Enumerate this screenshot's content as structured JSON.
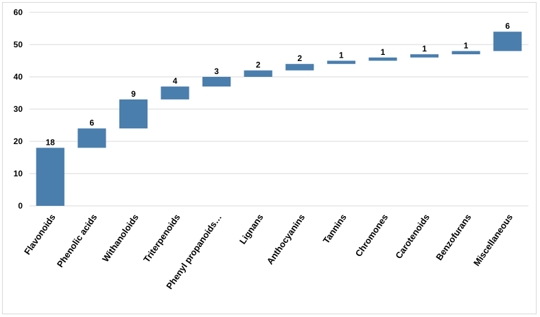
{
  "chart_data": {
    "type": "bar",
    "subtype": "waterfall",
    "title": "",
    "xlabel": "",
    "ylabel": "",
    "ylim": [
      0,
      60
    ],
    "yticks": [
      0,
      10,
      20,
      30,
      40,
      50,
      60
    ],
    "grid": true,
    "legend": "none",
    "bar_color": "#4a7ead",
    "grid_color": "#d9d9d9",
    "categories": [
      "Flavonoids",
      "Phenolic acids",
      "Withanoloids",
      "Triterpenoids",
      "Phenyl propanoids…",
      "Lignans",
      "Anthocyanins",
      "Tannins",
      "Chromones",
      "Carotenoids",
      "Benzofurans",
      "Miscellaneous"
    ],
    "values": [
      18,
      6,
      9,
      4,
      3,
      2,
      2,
      1,
      1,
      1,
      1,
      6
    ]
  }
}
